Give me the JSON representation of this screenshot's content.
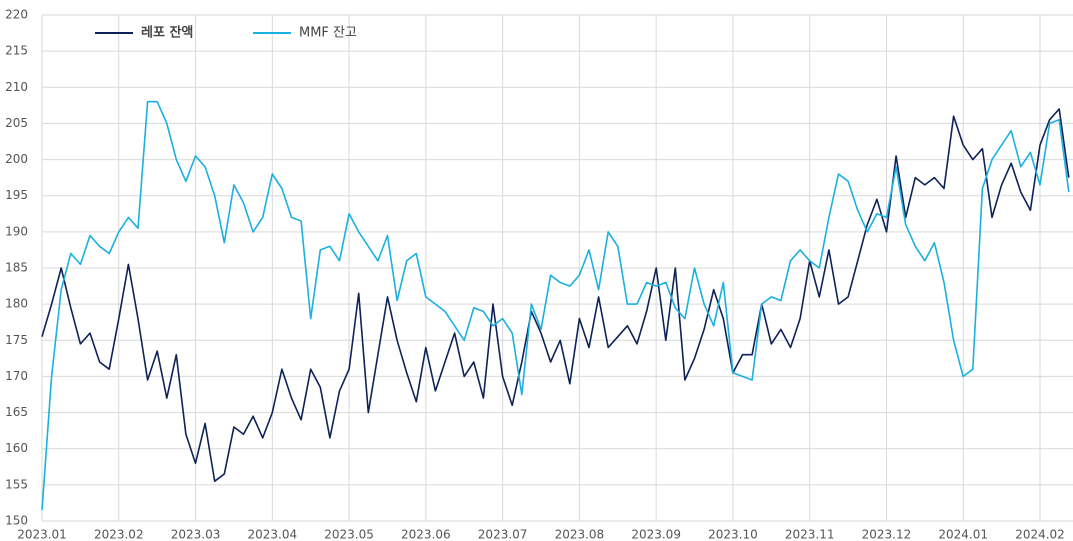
{
  "chart_data": {
    "type": "line",
    "categories": [
      "2023.01",
      null,
      null,
      null,
      null,
      null,
      null,
      null,
      "2023.02",
      null,
      null,
      null,
      null,
      null,
      null,
      null,
      "2023.03",
      null,
      null,
      null,
      null,
      null,
      null,
      null,
      "2023.04",
      null,
      null,
      null,
      null,
      null,
      null,
      null,
      "2023.05",
      null,
      null,
      null,
      null,
      null,
      null,
      null,
      "2023.06",
      null,
      null,
      null,
      null,
      null,
      null,
      null,
      "2023.07",
      null,
      null,
      null,
      null,
      null,
      null,
      null,
      "2023.08",
      null,
      null,
      null,
      null,
      null,
      null,
      null,
      "2023.09",
      null,
      null,
      null,
      null,
      null,
      null,
      null,
      "2023.10",
      null,
      null,
      null,
      null,
      null,
      null,
      null,
      "2023.11",
      null,
      null,
      null,
      null,
      null,
      null,
      null,
      "2023.12",
      null,
      null,
      null,
      null,
      null,
      null,
      null,
      "2024.01",
      null,
      null,
      null,
      null,
      null,
      null,
      null,
      "2024.02",
      null,
      null,
      null
    ],
    "series": [
      {
        "name": "레포 잔액",
        "color": "#0d2257",
        "bold": true,
        "values": [
          175.5,
          180,
          185,
          179.5,
          174.5,
          176,
          172,
          171,
          178,
          185.5,
          178,
          169.5,
          173.5,
          167,
          173,
          162,
          158,
          163.5,
          155.5,
          156.5,
          163,
          162,
          164.5,
          161.5,
          165,
          171,
          167,
          164,
          171,
          168.5,
          161.5,
          168,
          171,
          181.5,
          165,
          173,
          181,
          175,
          170.5,
          166.5,
          174,
          168,
          172,
          176,
          170,
          172,
          167,
          180,
          170,
          166,
          172,
          179,
          176,
          172,
          175,
          169,
          178,
          174,
          181,
          174,
          175.5,
          177,
          174.5,
          179,
          185,
          175,
          185,
          169.5,
          172.5,
          176.5,
          182,
          178,
          170.5,
          173,
          173,
          180,
          174.5,
          176.5,
          174,
          178,
          186,
          181,
          187.5,
          180,
          181,
          186,
          191,
          194.5,
          190,
          200.5,
          192,
          197.5,
          196.5,
          197.5,
          196,
          206,
          202,
          200,
          201.5,
          192,
          196.5,
          199.5,
          195.5,
          193,
          202,
          205.5,
          207,
          197.5
        ]
      },
      {
        "name": "MMF 잔고",
        "color": "#1ab0e0",
        "bold": false,
        "values": [
          151.5,
          170,
          182,
          187,
          185.5,
          189.5,
          188,
          187,
          190,
          192,
          190.5,
          208,
          208,
          205,
          200,
          197,
          200.5,
          199,
          195,
          188.5,
          196.5,
          194,
          190,
          192,
          198,
          196,
          192,
          191.5,
          178,
          187.5,
          188,
          186,
          192.5,
          190,
          188,
          186,
          189.5,
          180.5,
          186,
          187,
          181,
          180,
          179,
          177,
          175,
          179.5,
          179,
          177,
          178,
          176,
          167.5,
          180,
          176.5,
          184,
          183,
          182.5,
          184,
          187.5,
          182,
          190,
          188,
          180,
          180,
          183,
          182.5,
          183,
          179.5,
          178,
          185,
          180,
          177,
          183,
          170.5,
          170,
          169.5,
          180,
          181,
          180.5,
          186,
          187.5,
          186,
          185,
          192,
          198,
          197,
          193,
          190,
          192.5,
          192,
          199,
          191,
          188,
          186,
          188.5,
          183,
          175,
          170,
          171,
          196,
          200,
          202,
          204,
          199,
          201,
          196.5,
          205,
          205.5,
          195.5
        ]
      }
    ],
    "ylim": [
      150,
      220
    ],
    "yticks": [
      150,
      155,
      160,
      165,
      170,
      175,
      180,
      185,
      190,
      195,
      200,
      205,
      210,
      215,
      220
    ],
    "grid": true,
    "legend": "top-left"
  }
}
